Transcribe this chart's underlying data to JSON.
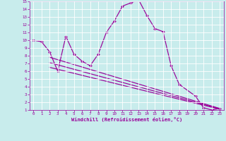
{
  "bg_color": "#c8ecec",
  "line_color": "#990099",
  "xlim": [
    -0.5,
    23.5
  ],
  "ylim": [
    1,
    15
  ],
  "xtick_labels": [
    "0",
    "1",
    "2",
    "3",
    "4",
    "5",
    "6",
    "7",
    "8",
    "9",
    "10",
    "11",
    "12",
    "13",
    "14",
    "15",
    "16",
    "17",
    "18",
    "19",
    "20",
    "21",
    "22",
    "23"
  ],
  "xticks": [
    0,
    1,
    2,
    3,
    4,
    5,
    6,
    7,
    8,
    9,
    10,
    11,
    12,
    13,
    14,
    15,
    16,
    17,
    18,
    19,
    20,
    21,
    22,
    23
  ],
  "yticks": [
    1,
    2,
    3,
    4,
    5,
    6,
    7,
    8,
    9,
    10,
    11,
    12,
    13,
    14,
    15
  ],
  "xlabel": "Windchill (Refroidissement éolien,°C)",
  "main_x": [
    0,
    1,
    2,
    3,
    4,
    5,
    6,
    7,
    8,
    9,
    10,
    11,
    12,
    13,
    14,
    15,
    16,
    17,
    18,
    20,
    21,
    22,
    23
  ],
  "main_y": [
    10,
    9.8,
    8.5,
    6.0,
    10.5,
    8.2,
    7.3,
    6.7,
    8.2,
    11.0,
    12.5,
    14.4,
    14.8,
    15.2,
    13.2,
    11.5,
    11.1,
    6.7,
    4.3,
    2.8,
    1.3,
    1.0,
    1.2
  ],
  "trend1_x": [
    2,
    23
  ],
  "trend1_y": [
    7.8,
    1.2
  ],
  "trend2_x": [
    2,
    23
  ],
  "trend2_y": [
    6.5,
    1.1
  ],
  "trend3_x": [
    2,
    23
  ],
  "trend3_y": [
    7.1,
    1.15
  ]
}
